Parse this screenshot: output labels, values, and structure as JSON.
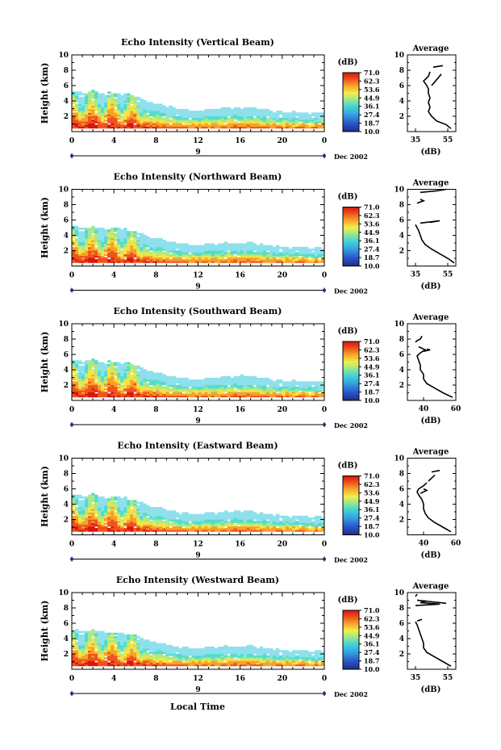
{
  "chart_data": [
    {
      "type": "heatmap",
      "title": "Echo Intensity (Vertical Beam)",
      "ylabel": "Height (km)",
      "xlim": [
        0,
        24
      ],
      "ylim": [
        0,
        10
      ],
      "x_ticks": [
        "0",
        "4",
        "8",
        "12",
        "16",
        "20",
        "0"
      ],
      "y_ticks": [
        "2",
        "4",
        "6",
        "8",
        "10"
      ],
      "date_marker": "9",
      "date_label": "Dec 2002",
      "top_km": [
        5.2,
        5.0,
        5.2,
        4.9,
        5.0,
        4.8,
        4.6,
        3.9,
        3.6,
        3.3,
        2.9,
        2.7,
        2.7,
        2.8,
        2.9,
        3.0,
        3.0,
        3.0,
        2.8,
        2.6,
        2.5,
        2.4,
        2.3,
        2.3,
        2.4
      ],
      "colorbar": {
        "unit": "(dB)",
        "ticks": [
          "71.0",
          "62.3",
          "53.6",
          "44.9",
          "36.1",
          "27.4",
          "18.7",
          "10.0"
        ]
      },
      "profile": {
        "title": "Average",
        "xlabel": "(dB)",
        "x_ticks": [
          "35",
          "55"
        ],
        "xlim": [
          30,
          60
        ],
        "y_ticks": [
          "2",
          "4",
          "6",
          "8",
          "10"
        ],
        "ylim": [
          0,
          10
        ],
        "segments": [
          {
            "h": [
              0.4,
              0.9,
              1.4,
              2.0,
              2.6,
              3.2,
              3.8,
              4.4,
              5.0,
              5.6,
              6.0,
              6.6,
              7.2,
              7.8
            ],
            "db": [
              57,
              54,
              48,
              45,
              43,
              44,
              43,
              44,
              43,
              43,
              42,
              40,
              43,
              44
            ]
          },
          {
            "h": [
              6.0,
              6.5,
              7.0,
              7.5
            ],
            "db": [
              45,
              47,
              49,
              51
            ]
          },
          {
            "h": [
              8.4,
              8.6
            ],
            "db": [
              46,
              52
            ]
          }
        ]
      }
    },
    {
      "type": "heatmap",
      "title": "Echo Intensity (Northward Beam)",
      "ylabel": "Height (km)",
      "xlim": [
        0,
        24
      ],
      "ylim": [
        0,
        10
      ],
      "x_ticks": [
        "0",
        "4",
        "8",
        "12",
        "16",
        "20",
        "0"
      ],
      "y_ticks": [
        "2",
        "4",
        "6",
        "8",
        "10"
      ],
      "date_marker": "9",
      "date_label": "Dec 2002",
      "top_km": [
        5.1,
        4.9,
        5.1,
        4.8,
        4.9,
        4.7,
        4.5,
        3.8,
        3.5,
        3.2,
        2.8,
        2.7,
        2.6,
        2.7,
        2.8,
        2.9,
        2.9,
        2.9,
        2.7,
        2.5,
        2.4,
        2.3,
        2.3,
        2.2,
        2.3
      ],
      "colorbar": {
        "unit": "(dB)",
        "ticks": [
          "71.0",
          "62.3",
          "53.6",
          "44.9",
          "36.1",
          "27.4",
          "18.7",
          "10.0"
        ]
      },
      "profile": {
        "title": "Average",
        "xlabel": "(dB)",
        "x_ticks": [
          "35",
          "55"
        ],
        "xlim": [
          30,
          60
        ],
        "y_ticks": [
          "2",
          "4",
          "6",
          "8",
          "10"
        ],
        "ylim": [
          0,
          10
        ],
        "segments": [
          {
            "h": [
              0.4,
              1.0,
              1.6,
              2.2,
              2.8,
              3.4,
              4.0,
              4.6,
              5.0,
              5.4
            ],
            "db": [
              59,
              55,
              50,
              45,
              41,
              39,
              38,
              37,
              36,
              35
            ]
          },
          {
            "h": [
              5.6,
              5.8,
              5.9,
              5.7
            ],
            "db": [
              38,
              46,
              50,
              44
            ]
          },
          {
            "h": [
              8.2,
              8.5,
              8.7
            ],
            "db": [
              36,
              40,
              38
            ]
          },
          {
            "h": [
              9.6,
              9.8,
              10.0
            ],
            "db": [
              38,
              48,
              54
            ]
          }
        ]
      }
    },
    {
      "type": "heatmap",
      "title": "Echo Intensity (Southward Beam)",
      "ylabel": "Height (km)",
      "xlim": [
        0,
        24
      ],
      "ylim": [
        0,
        10
      ],
      "x_ticks": [
        "0",
        "4",
        "8",
        "12",
        "16",
        "20",
        "0"
      ],
      "y_ticks": [
        "2",
        "4",
        "6",
        "8",
        "10"
      ],
      "date_marker": "9",
      "date_label": "Dec 2002",
      "top_km": [
        5.2,
        5.1,
        5.3,
        4.9,
        5.0,
        4.8,
        4.6,
        3.9,
        3.6,
        3.2,
        2.9,
        2.7,
        2.7,
        2.8,
        2.9,
        3.0,
        3.1,
        3.0,
        2.8,
        2.6,
        2.5,
        2.4,
        2.4,
        2.3,
        2.4
      ],
      "colorbar": {
        "unit": "(dB)",
        "ticks": [
          "71.0",
          "62.3",
          "53.6",
          "44.9",
          "36.1",
          "27.4",
          "18.7",
          "10.0"
        ]
      },
      "profile": {
        "title": "Average",
        "xlabel": "(dB)",
        "x_ticks": [
          "40",
          "60"
        ],
        "xlim": [
          30,
          60
        ],
        "y_ticks": [
          "2",
          "4",
          "6",
          "8",
          "10"
        ],
        "ylim": [
          0,
          10
        ],
        "segments": [
          {
            "h": [
              0.4,
              1.0,
              1.6,
              2.2,
              2.8,
              3.4,
              4.0,
              4.6,
              5.2,
              5.8,
              6.2,
              6.6,
              7.0
            ],
            "db": [
              58,
              52,
              47,
              42,
              40,
              40,
              38,
              38,
              37,
              36,
              38,
              41,
              37
            ]
          },
          {
            "h": [
              6.4,
              6.6,
              6.7
            ],
            "db": [
              40,
              44,
              42
            ]
          },
          {
            "h": [
              7.6,
              7.8,
              8.0,
              8.4
            ],
            "db": [
              35,
              36,
              38,
              39
            ]
          }
        ]
      }
    },
    {
      "type": "heatmap",
      "title": "Echo Intensity (Eastward Beam)",
      "ylabel": "Height (km)",
      "xlim": [
        0,
        24
      ],
      "ylim": [
        0,
        10
      ],
      "x_ticks": [
        "0",
        "4",
        "8",
        "12",
        "16",
        "20",
        "0"
      ],
      "y_ticks": [
        "2",
        "4",
        "6",
        "8",
        "10"
      ],
      "date_marker": "9",
      "date_label": "Dec 2002",
      "top_km": [
        5.1,
        5.0,
        5.2,
        4.8,
        4.9,
        4.7,
        4.5,
        3.8,
        3.5,
        3.2,
        2.8,
        2.6,
        2.6,
        2.7,
        2.8,
        2.9,
        3.0,
        2.9,
        2.7,
        2.5,
        2.4,
        2.3,
        2.3,
        2.2,
        2.3
      ],
      "colorbar": {
        "unit": "(dB)",
        "ticks": [
          "71.0",
          "62.3",
          "53.6",
          "44.9",
          "36.1",
          "27.4",
          "18.7",
          "10.0"
        ]
      },
      "profile": {
        "title": "Average",
        "xlabel": "(dB)",
        "x_ticks": [
          "40",
          "60"
        ],
        "xlim": [
          30,
          60
        ],
        "y_ticks": [
          "2",
          "4",
          "6",
          "8",
          "10"
        ],
        "ylim": [
          0,
          10
        ],
        "segments": [
          {
            "h": [
              0.4,
              1.0,
              1.6,
              2.2,
              2.8,
              3.4,
              4.0,
              4.6,
              5.2,
              5.6,
              6.0,
              6.4,
              6.8
            ],
            "db": [
              57,
              52,
              47,
              43,
              41,
              40,
              40,
              39,
              37,
              36,
              37,
              40,
              42
            ]
          },
          {
            "h": [
              5.4,
              5.8,
              6.0
            ],
            "db": [
              38,
              42,
              40
            ]
          },
          {
            "h": [
              7.0,
              7.4,
              7.8
            ],
            "db": [
              43,
              45,
              47
            ]
          },
          {
            "h": [
              8.2,
              8.4
            ],
            "db": [
              45,
              50
            ]
          }
        ]
      }
    },
    {
      "type": "heatmap",
      "title": "Echo Intensity (Westward Beam)",
      "ylabel": "Height (km)",
      "xlim": [
        0,
        24
      ],
      "ylim": [
        0,
        10
      ],
      "x_ticks": [
        "0",
        "4",
        "8",
        "12",
        "16",
        "20",
        "0"
      ],
      "y_ticks": [
        "2",
        "4",
        "6",
        "8",
        "10"
      ],
      "date_marker": "9",
      "date_label": "Dec 2002",
      "top_km": [
        5.0,
        4.9,
        5.0,
        4.8,
        4.8,
        4.6,
        4.4,
        3.7,
        3.4,
        3.1,
        2.8,
        2.6,
        2.6,
        2.7,
        2.8,
        2.9,
        2.9,
        2.9,
        2.7,
        2.5,
        2.4,
        2.3,
        2.3,
        2.2,
        2.3
      ],
      "colorbar": {
        "unit": "(dB)",
        "ticks": [
          "71.0",
          "62.3",
          "53.6",
          "44.9",
          "36.1",
          "27.4",
          "18.7",
          "10.0"
        ]
      },
      "profile": {
        "title": "Average",
        "xlabel": "(dB)",
        "x_ticks": [
          "35",
          "55"
        ],
        "xlim": [
          30,
          60
        ],
        "y_ticks": [
          "2",
          "4",
          "6",
          "8",
          "10"
        ],
        "ylim": [
          0,
          10
        ],
        "segments": [
          {
            "h": [
              0.4,
              1.0,
              1.6,
              2.2,
              2.8,
              3.4,
              4.0,
              4.6,
              5.2,
              5.8,
              6.2
            ],
            "db": [
              57,
              52,
              47,
              42,
              40,
              40,
              39,
              38,
              37,
              36,
              35
            ]
          },
          {
            "h": [
              6.3,
              6.5
            ],
            "db": [
              36,
              39
            ]
          },
          {
            "h": [
              8.3,
              8.5,
              8.7,
              8.9,
              9.0,
              8.6
            ],
            "db": [
              35,
              50,
              38,
              42,
              36,
              54
            ]
          },
          {
            "h": [
              9.5,
              9.8
            ],
            "db": [
              35,
              36
            ]
          }
        ]
      }
    }
  ],
  "footer": {
    "xlabel": "Local Time"
  }
}
